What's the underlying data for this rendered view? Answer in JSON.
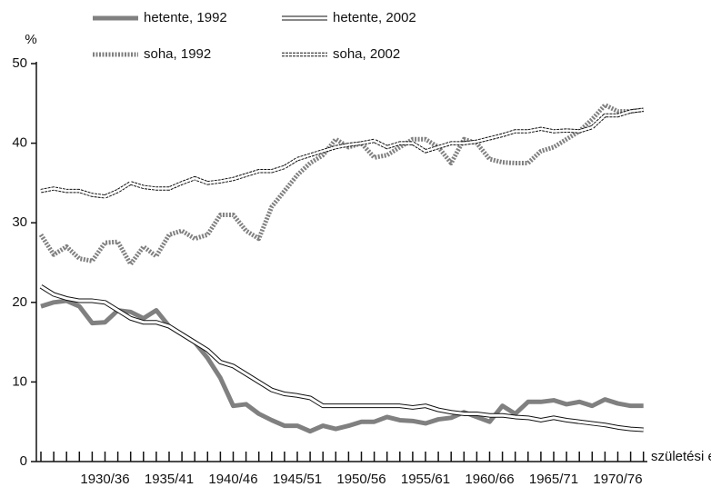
{
  "chart_data": {
    "type": "line",
    "y_label": "%",
    "x_label": "születési év",
    "categories": [
      null,
      null,
      null,
      null,
      null,
      "1930/36",
      null,
      null,
      null,
      null,
      "1935/41",
      null,
      null,
      null,
      null,
      "1940/46",
      null,
      null,
      null,
      null,
      "1945/51",
      null,
      null,
      null,
      null,
      "1950/56",
      null,
      null,
      null,
      null,
      "1955/61",
      null,
      null,
      null,
      null,
      "1960/66",
      null,
      null,
      null,
      null,
      "1965/71",
      null,
      null,
      null,
      null,
      "1970/76",
      null,
      null
    ],
    "series": [
      {
        "name": "hetente, 1992",
        "color": "#808080",
        "dashed": false,
        "values": [
          19.5,
          20,
          20.2,
          19.5,
          17.4,
          17.5,
          19,
          18.8,
          18,
          19,
          17,
          16,
          15,
          13,
          10.5,
          7,
          7.2,
          6,
          5.2,
          4.5,
          4.5,
          3.8,
          4.5,
          4.1,
          4.5,
          5,
          5,
          5.6,
          5.2,
          5.1,
          4.8,
          5.3,
          5.5,
          6.2,
          5.6,
          5,
          7,
          6,
          7.5,
          7.5,
          7.7,
          7.2,
          7.5,
          7,
          7.8,
          7.3,
          7,
          7
        ]
      },
      {
        "name": "hetente, 2002",
        "color": "#ffffff",
        "dashed": false,
        "values": [
          22,
          21,
          20.5,
          20.2,
          20.2,
          20,
          19,
          18,
          17.5,
          17.5,
          17,
          16,
          15,
          14,
          12.5,
          12,
          11,
          10,
          9,
          8.5,
          8.3,
          8,
          7,
          7,
          7,
          7,
          7,
          7,
          7,
          6.8,
          7,
          6.5,
          6.2,
          6,
          6,
          5.8,
          5.8,
          5.6,
          5.5,
          5.2,
          5.5,
          5.2,
          5,
          4.8,
          4.6,
          4.3,
          4.1,
          4
        ]
      },
      {
        "name": "soha, 1992",
        "color": "#808080",
        "dashed": true,
        "values": [
          28.5,
          26,
          27,
          25.5,
          25.2,
          27.5,
          27.6,
          24.8,
          27,
          25.8,
          28.5,
          29,
          28,
          28.5,
          31,
          31,
          29,
          28,
          32,
          34,
          36,
          37.5,
          38.5,
          40.5,
          39.5,
          40,
          38.2,
          38.5,
          39.5,
          40.5,
          40.5,
          39.5,
          37.5,
          40.5,
          40,
          38,
          37.6,
          37.5,
          37.5,
          39,
          39.5,
          40.5,
          41.5,
          43,
          44.8,
          44,
          44,
          44.2
        ]
      },
      {
        "name": "soha, 2002",
        "color": "#ffffff",
        "dashed": true,
        "values": [
          34,
          34.3,
          34,
          34,
          33.5,
          33.3,
          34,
          35,
          34.5,
          34.3,
          34.3,
          35,
          35.6,
          35,
          35.2,
          35.5,
          36,
          36.5,
          36.5,
          37,
          38,
          38.5,
          39,
          39.5,
          39.8,
          40,
          40.3,
          39.5,
          40,
          40,
          39,
          39.5,
          40,
          40,
          40.2,
          40.6,
          41,
          41.5,
          41.5,
          41.8,
          41.5,
          41.6,
          41.5,
          42,
          43.5,
          43.5,
          44,
          44.2
        ]
      }
    ],
    "ylim": [
      0,
      50
    ],
    "yticks": [
      0,
      10,
      20,
      30,
      40,
      50
    ]
  }
}
